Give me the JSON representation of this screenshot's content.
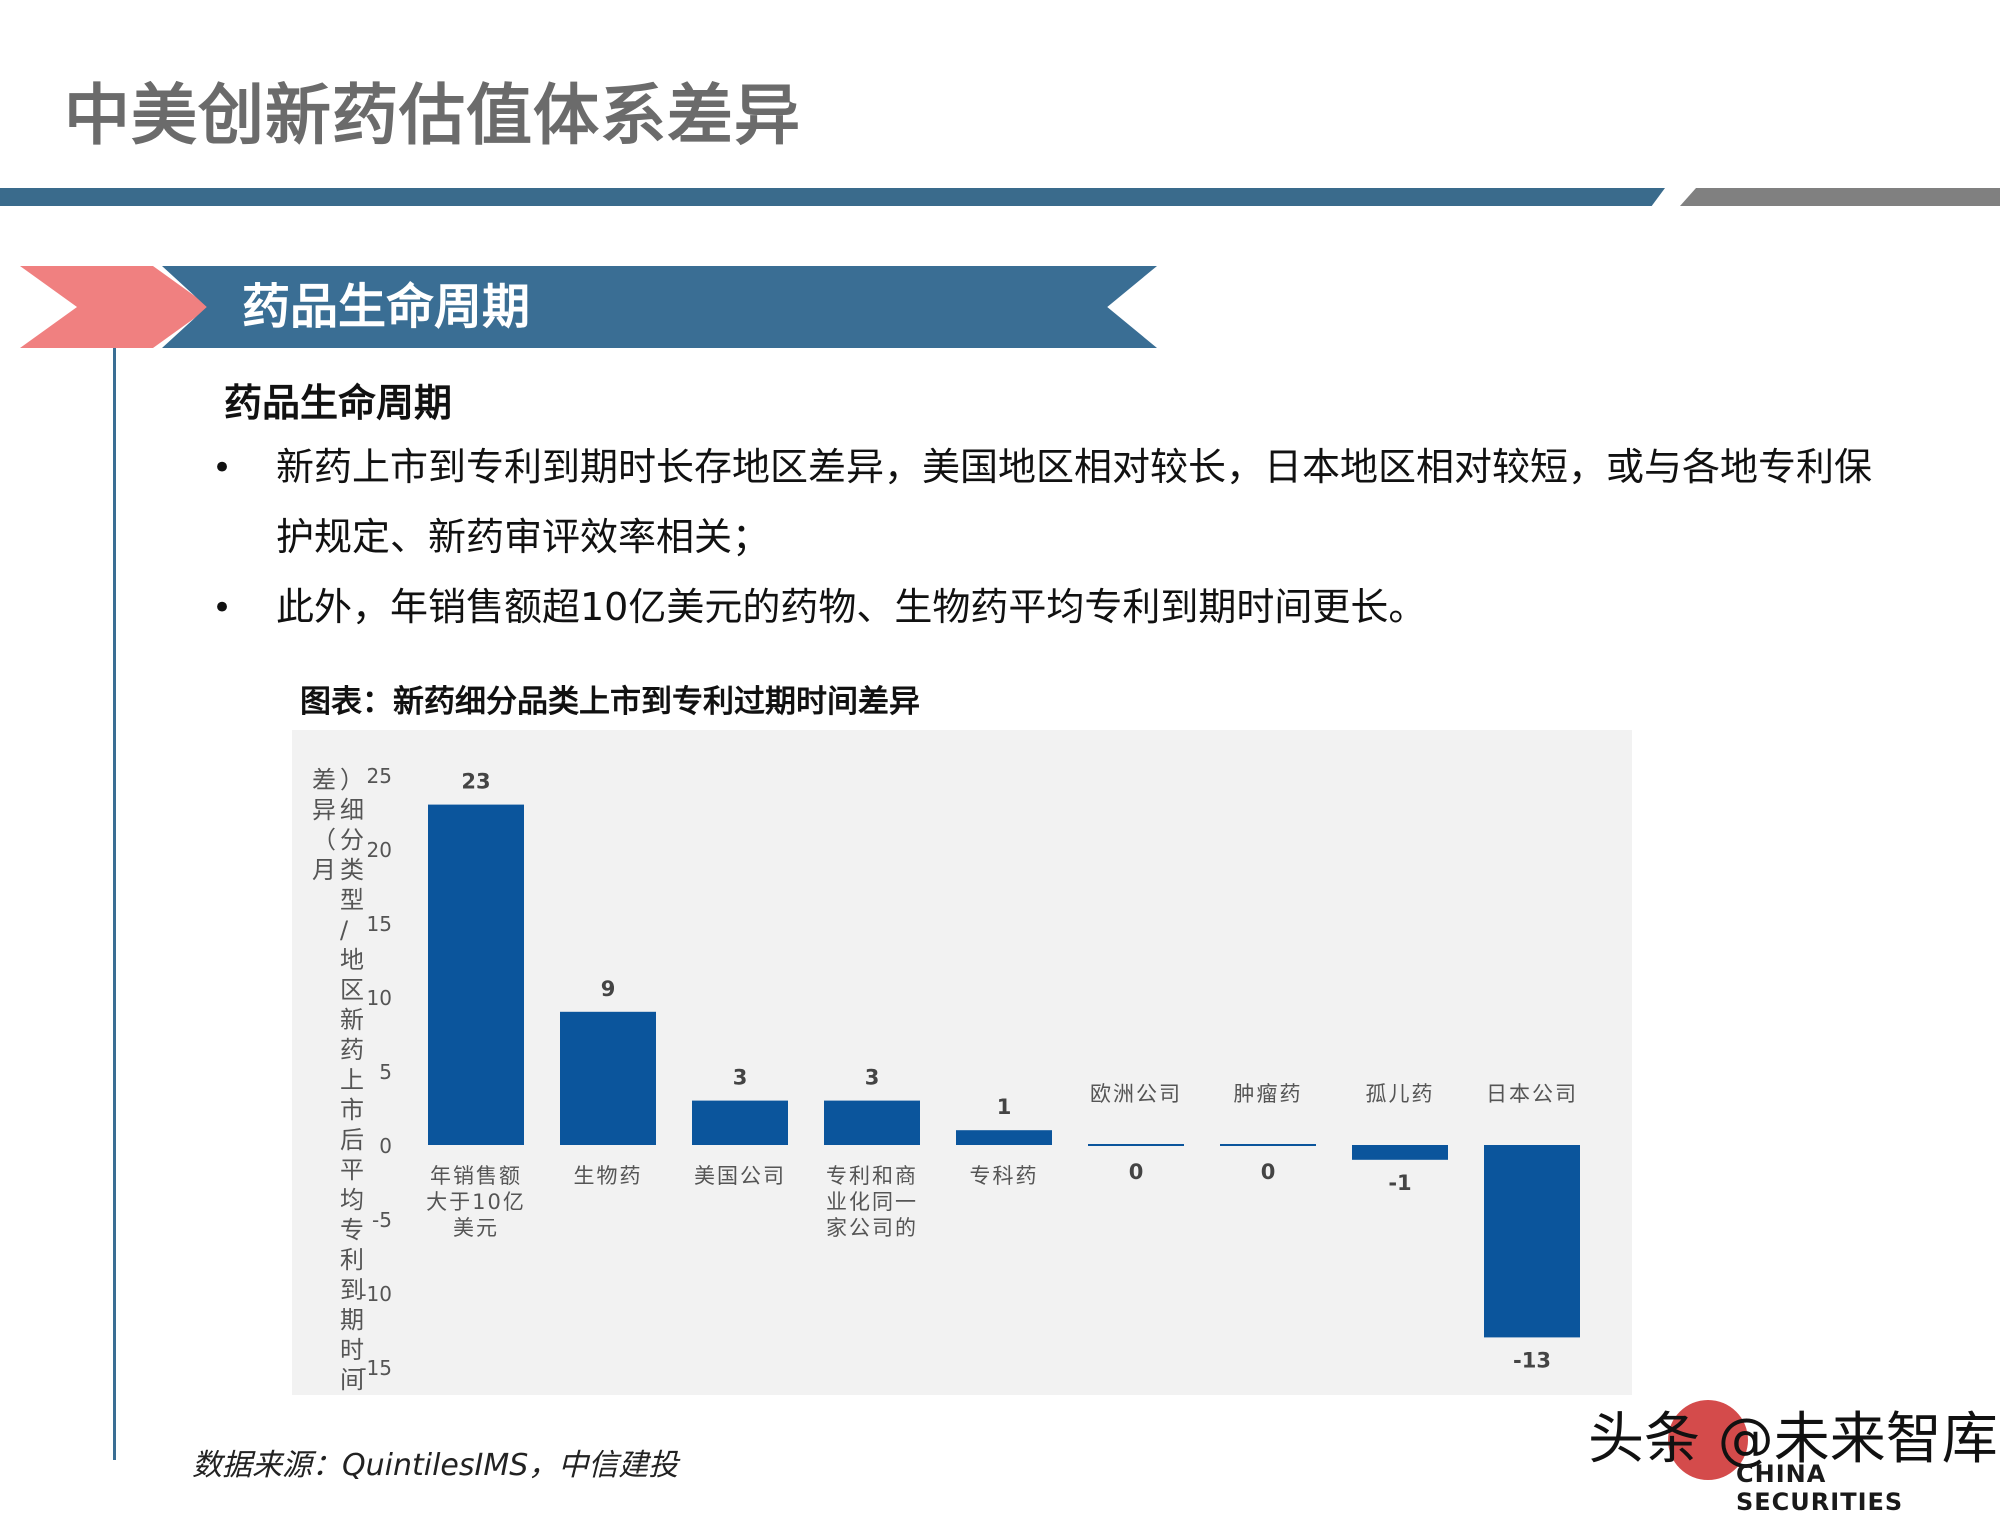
{
  "page": {
    "title": "中美创新药估值体系差异",
    "section_banner": "药品生命周期",
    "sub_heading": "药品生命周期",
    "bullets": [
      {
        "marker": "•",
        "text": "新药上市到专利到期时长存地区差异，美国地区相对较长，日本地区相对较短，或与各地专利保护规定、新药审评效率相关；"
      },
      {
        "marker": "•",
        "text": "此外，年销售额超10亿美元的药物、生物药平均专利到期时间更长。"
      }
    ],
    "chart_caption": "图表：新药细分品类上市到专利过期时间差异",
    "source": "数据来源：QuintilesIMS，中信建投",
    "watermark": {
      "text": "头条 @未来智库",
      "sub": "CHINA SECURITIES"
    }
  },
  "colors": {
    "title": "#6b6b6b",
    "rule_blue": "#3a6b8c",
    "rule_grey": "#808080",
    "chevron_pink": "#f08080",
    "banner_blue": "#3a6e94",
    "bar_blue": "#0b559c",
    "panel_bg": "#f2f2f2"
  },
  "chart_data": {
    "type": "bar",
    "ylabel": "差异（月）细分类型/地区新药上市后平均专利到期时间",
    "ylim": [
      -15,
      25
    ],
    "yticks": [
      25,
      20,
      15,
      10,
      5,
      0,
      -5,
      -10,
      -15
    ],
    "grid": false,
    "categories": [
      "年销售额大于10亿美元",
      "生物药",
      "美国公司",
      "专利和商业化同一家公司的",
      "专科药",
      "欧洲公司",
      "肿瘤药",
      "孤儿药",
      "日本公司"
    ],
    "category_lines": [
      [
        "年销售额",
        "大于10亿",
        "美元"
      ],
      [
        "生物药"
      ],
      [
        "美国公司"
      ],
      [
        "专利和商",
        "业化同一",
        "家公司的"
      ],
      [
        "专科药"
      ],
      [
        "欧洲公司"
      ],
      [
        "肿瘤药"
      ],
      [
        "孤儿药"
      ],
      [
        "日本公司"
      ]
    ],
    "values": [
      23,
      9,
      3,
      3,
      1,
      0,
      0,
      -1,
      -13
    ]
  }
}
